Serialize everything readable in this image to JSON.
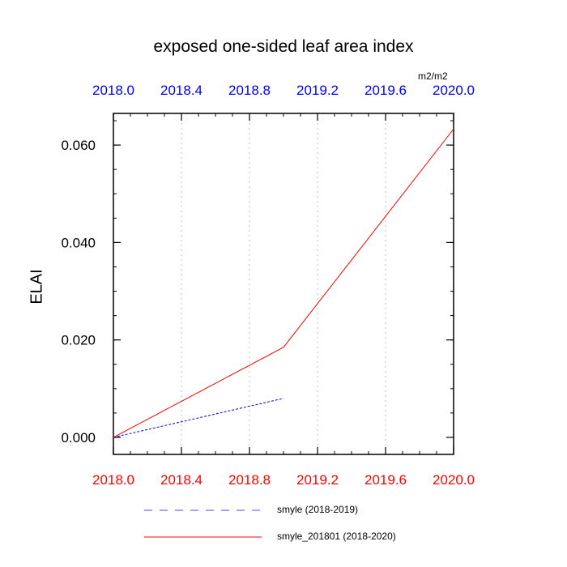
{
  "chart_data": {
    "type": "line",
    "title": "exposed one-sided leaf area index",
    "units": "m2/m2",
    "ylabel": "ELAI",
    "xlabel": "",
    "xlim": [
      2018.0,
      2020.0
    ],
    "ylim": [
      -0.0035,
      0.0665
    ],
    "x_ticks": [
      2018.0,
      2018.4,
      2018.8,
      2019.2,
      2019.6,
      2020.0
    ],
    "x_tick_labels": [
      "2018.0",
      "2018.4",
      "2018.8",
      "2019.2",
      "2019.6",
      "2020.0"
    ],
    "y_ticks": [
      0.0,
      0.02,
      0.04,
      0.06
    ],
    "y_tick_labels": [
      "0.000",
      "0.020",
      "0.040",
      "0.060"
    ],
    "top_axis_color": "#0000ff",
    "bottom_axis_color": "#ff0000",
    "grid": "vertical dotted",
    "legend_position": "bottom",
    "series": [
      {
        "name": "smyle (2018-2019)",
        "color": "#0000ff",
        "dash": "dashed",
        "x": [
          2018.0,
          2019.0
        ],
        "y": [
          0.0,
          0.008
        ]
      },
      {
        "name": "smyle_201801 (2018-2020)",
        "color": "#ff0000",
        "dash": "solid",
        "x": [
          2018.0,
          2019.0,
          2020.0
        ],
        "y": [
          0.0,
          0.0185,
          0.0633
        ]
      }
    ]
  }
}
